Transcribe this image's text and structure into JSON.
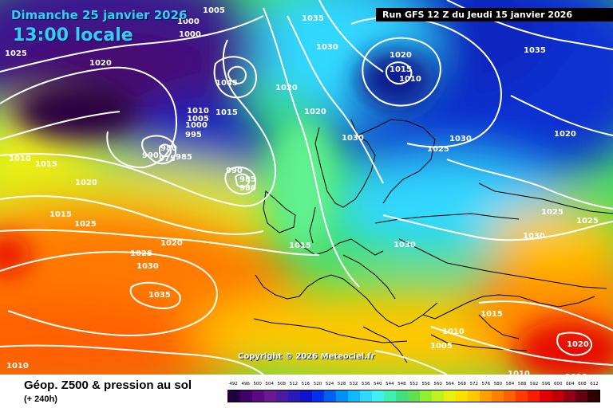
{
  "map": {
    "date_label": "Dimanche 25 janvier 2026",
    "time_label": "13:00 locale",
    "run_label": "Run GFS 12 Z du Jeudi 15 janvier 2026",
    "copyright": "Copyright © 2026 Meteociel.fr",
    "pressure_labels": [
      "1005",
      "1000",
      "1035",
      "1025",
      "1020",
      "1000",
      "1030",
      "1020",
      "1035",
      "1015",
      "1010",
      "1045",
      "1020",
      "1010",
      "1005",
      "1000",
      "995",
      "1015",
      "1020",
      "1030",
      "980",
      "990",
      "975",
      "985",
      "1025",
      "1030",
      "1010",
      "1015",
      "1020",
      "1020",
      "990",
      "985",
      "980",
      "1015",
      "1025",
      "1015",
      "1020",
      "1030",
      "1030",
      "1025",
      "1030",
      "1035",
      "1025",
      "1015",
      "1025",
      "1010",
      "1005",
      "1010",
      "1020",
      "1010",
      "1010"
    ],
    "colors": {
      "deep_purple": "#4a0a6e",
      "blue": "#0a32d2",
      "cyan": "#30d8ff",
      "green": "#40e060",
      "yellow": "#f5f000",
      "orange": "#ff7a00",
      "red": "#e81000"
    }
  },
  "footer": {
    "title": "Géop. Z500 & pression au sol",
    "lead_time": "(+ 240h)"
  },
  "legend": {
    "ticks": [
      "492",
      "496",
      "500",
      "504",
      "508",
      "512",
      "516",
      "520",
      "524",
      "528",
      "532",
      "536",
      "540",
      "544",
      "548",
      "552",
      "556",
      "560",
      "564",
      "568",
      "572",
      "576",
      "580",
      "584",
      "588",
      "592",
      "596",
      "600",
      "604",
      "608",
      "612"
    ],
    "colors": [
      "#200040",
      "#40006a",
      "#5a0a80",
      "#6a1a90",
      "#4a1aa0",
      "#2a1ab8",
      "#1010d0",
      "#0030e8",
      "#0060f0",
      "#0090f8",
      "#10b8ff",
      "#30d8ff",
      "#40f0f0",
      "#40f0b0",
      "#40e080",
      "#60e050",
      "#90f030",
      "#c0f020",
      "#e8f010",
      "#f8e000",
      "#ffc800",
      "#ffa000",
      "#ff8000",
      "#ff6000",
      "#ff3c00",
      "#f81c00",
      "#e00000",
      "#c00000",
      "#900010",
      "#600010",
      "#300000"
    ]
  }
}
